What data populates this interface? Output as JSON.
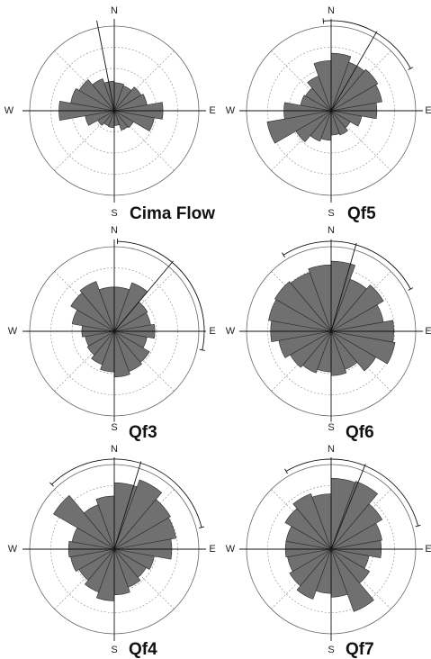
{
  "figure": {
    "colors": {
      "petal_fill": "#707070",
      "petal_stroke": "#2a2a2a",
      "axis": "#111111",
      "ring": "#888888",
      "outer_ring": "#666666"
    }
  },
  "chart_data": [
    {
      "type": "rose",
      "title": "Cima Flow",
      "compass_labels": [
        "N",
        "E",
        "S",
        "W"
      ],
      "sector_width_deg": 20,
      "max_frequency": 1,
      "grid": true,
      "values": [
        0.38,
        0.36,
        0.42,
        0.45,
        0.66,
        0.55,
        0.3,
        0.28,
        0.2,
        0.23,
        0.22,
        0.26,
        0.4,
        0.75,
        0.6,
        0.55,
        0.46,
        0.4
      ],
      "mean_direction_deg": -11,
      "confidence_arc_deg": null
    },
    {
      "type": "rose",
      "title": "Qf5",
      "compass_labels": [
        "N",
        "E",
        "S",
        "W"
      ],
      "sector_width_deg": 20,
      "max_frequency": 1,
      "grid": true,
      "values": [
        0.78,
        0.7,
        0.73,
        0.7,
        0.62,
        0.42,
        0.3,
        0.35,
        0.33,
        0.4,
        0.44,
        0.55,
        0.88,
        0.64,
        0.42,
        0.4,
        0.5,
        0.68
      ],
      "mean_direction_deg": 30,
      "confidence_arc_deg": [
        -5,
        62
      ]
    },
    {
      "type": "rose",
      "title": "Qf3",
      "compass_labels": [
        "N",
        "E",
        "S",
        "W"
      ],
      "sector_width_deg": 20,
      "max_frequency": 1,
      "grid": true,
      "values": [
        0.6,
        0.7,
        0.52,
        0.5,
        0.55,
        0.45,
        0.55,
        0.58,
        0.62,
        0.55,
        0.48,
        0.42,
        0.4,
        0.44,
        0.58,
        0.68,
        0.72,
        0.6
      ],
      "mean_direction_deg": 40,
      "confidence_arc_deg": [
        2,
        102
      ]
    },
    {
      "type": "rose",
      "title": "Qf6",
      "compass_labels": [
        "N",
        "E",
        "S",
        "W"
      ],
      "sector_width_deg": 20,
      "max_frequency": 1,
      "grid": true,
      "values": [
        0.95,
        0.75,
        0.82,
        0.72,
        0.85,
        0.88,
        0.7,
        0.55,
        0.6,
        0.55,
        0.6,
        0.64,
        0.72,
        0.82,
        0.86,
        0.88,
        0.85,
        0.9
      ],
      "mean_direction_deg": 16,
      "confidence_arc_deg": [
        -32,
        62
      ]
    },
    {
      "type": "rose",
      "title": "Qf4",
      "compass_labels": [
        "N",
        "E",
        "S",
        "W"
      ],
      "sector_width_deg": 20,
      "max_frequency": 1,
      "grid": true,
      "values": [
        0.9,
        1.0,
        0.88,
        0.85,
        0.78,
        0.55,
        0.5,
        0.55,
        0.62,
        0.7,
        0.62,
        0.55,
        0.6,
        0.62,
        0.58,
        0.95,
        0.64,
        0.72
      ],
      "mean_direction_deg": 17,
      "confidence_arc_deg": [
        -44,
        76
      ]
    },
    {
      "type": "rose",
      "title": "Qf7",
      "compass_labels": [
        "N",
        "E",
        "S",
        "W"
      ],
      "sector_width_deg": 20,
      "max_frequency": 1,
      "grid": true,
      "values": [
        0.96,
        0.98,
        0.8,
        0.7,
        0.68,
        0.52,
        0.6,
        0.9,
        0.65,
        0.6,
        0.72,
        0.65,
        0.6,
        0.62,
        0.62,
        0.72,
        0.8,
        0.75
      ],
      "mean_direction_deg": 22,
      "confidence_arc_deg": [
        -30,
        75
      ]
    }
  ]
}
